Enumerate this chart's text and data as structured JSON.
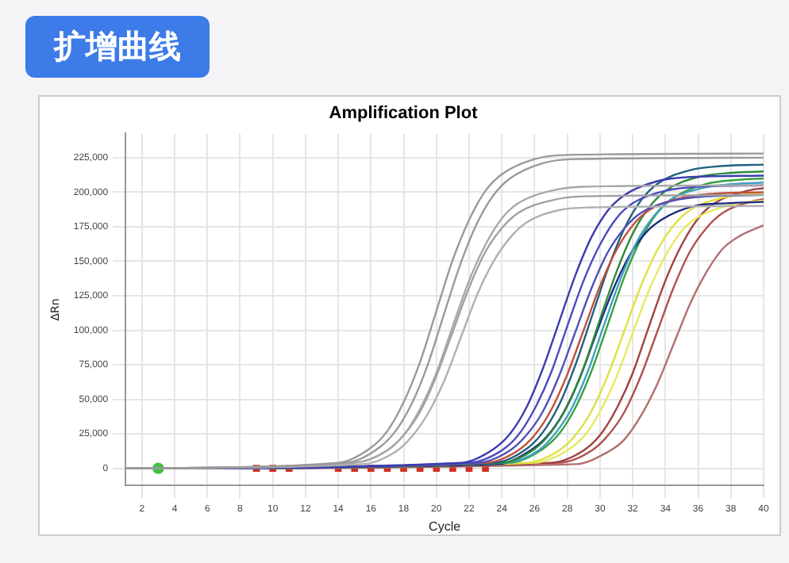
{
  "chart_data": {
    "type": "line",
    "title": "Amplification Plot",
    "xlabel": "Cycle",
    "ylabel": "ΔRn",
    "annotations": [
      "扩增曲线"
    ],
    "xlim": [
      1,
      40
    ],
    "xticks": [
      2,
      4,
      6,
      8,
      10,
      12,
      14,
      16,
      18,
      20,
      22,
      24,
      26,
      28,
      30,
      32,
      34,
      36,
      38,
      40
    ],
    "ylim": [
      -12500,
      242500
    ],
    "yticks": [
      0,
      {
        "value": 25000,
        "label": "25,000"
      },
      {
        "value": 50000,
        "label": "50,000"
      },
      {
        "value": 75000,
        "label": "75,000"
      },
      {
        "value": 100000,
        "label": "100,000"
      },
      {
        "value": 125000,
        "label": "125,000"
      },
      {
        "value": 150000,
        "label": "150,000"
      },
      {
        "value": 175000,
        "label": "175,000"
      },
      {
        "value": 200000,
        "label": "200,000"
      },
      {
        "value": 225000,
        "label": "225,000"
      }
    ],
    "grid": true,
    "legend": false,
    "marker": "none",
    "series": [
      {
        "color": "#9a9a9a",
        "x": [
          1,
          14,
          16,
          17,
          18,
          19,
          20,
          21,
          22,
          23,
          24,
          26,
          28,
          40
        ],
        "values": [
          0,
          4000,
          15000,
          27000,
          48000,
          77000,
          114000,
          151000,
          180000,
          201000,
          213000,
          224000,
          227000,
          228000
        ]
      },
      {
        "color": "#9a9a9a",
        "x": [
          1,
          14.5,
          16.5,
          17.5,
          18.5,
          19.5,
          20.5,
          21.5,
          22.5,
          23.5,
          24.5,
          26.5,
          28.5,
          40
        ],
        "values": [
          0,
          4000,
          15000,
          27000,
          47000,
          76000,
          113000,
          149000,
          178000,
          198000,
          210000,
          221000,
          224000,
          225000
        ]
      },
      {
        "color": "#a8a8a8",
        "x": [
          1,
          15,
          17,
          18,
          19,
          20,
          21,
          22,
          23,
          24,
          25,
          27,
          29,
          40
        ],
        "values": [
          0,
          4000,
          13000,
          24000,
          43000,
          69000,
          103000,
          136000,
          162000,
          181000,
          192000,
          201000,
          204000,
          205000
        ]
      },
      {
        "color": "#a0a0a0",
        "x": [
          1,
          15,
          17,
          18,
          19,
          20,
          21,
          22,
          23,
          24,
          25,
          27,
          29,
          40
        ],
        "values": [
          0,
          4000,
          13000,
          24000,
          41000,
          67000,
          99000,
          131000,
          157000,
          174000,
          185000,
          194000,
          197000,
          198000
        ]
      },
      {
        "color": "#b0b0b0",
        "x": [
          1,
          15.5,
          17.5,
          18.5,
          19.5,
          20.5,
          21.5,
          22.5,
          23.5,
          24.5,
          25.5,
          27.5,
          29.5,
          40
        ],
        "values": [
          0,
          3000,
          12000,
          23000,
          40000,
          64000,
          95000,
          126000,
          150000,
          167000,
          178000,
          187000,
          189000,
          190000
        ]
      },
      {
        "color": "#3b3bb0",
        "x": [
          1,
          21.5,
          23.5,
          24.5,
          25.5,
          26.5,
          27.5,
          28.5,
          29.5,
          30.5,
          31.5,
          33.5,
          35.5,
          40
        ],
        "values": [
          0,
          4000,
          14000,
          25000,
          44000,
          72000,
          106000,
          140000,
          168000,
          187000,
          198000,
          208000,
          211000,
          212000
        ]
      },
      {
        "color": "#4a4ac0",
        "x": [
          1,
          22,
          24,
          25,
          26,
          27,
          28,
          29,
          30,
          31,
          32,
          34,
          36,
          40
        ],
        "values": [
          0,
          4000,
          13000,
          24000,
          43000,
          69000,
          103000,
          136000,
          162000,
          181000,
          192000,
          201000,
          204000,
          205000
        ]
      },
      {
        "color": "#5050b8",
        "x": [
          1,
          22.5,
          24.5,
          25.5,
          26.5,
          27.5,
          28.5,
          29.5,
          30.5,
          31.5,
          32.5,
          34.5,
          36.5,
          40
        ],
        "values": [
          0,
          4000,
          13000,
          24000,
          41000,
          67000,
          99000,
          131000,
          157000,
          174000,
          185000,
          194000,
          197000,
          198000
        ]
      },
      {
        "color": "#c0503a",
        "x": [
          1,
          23,
          25,
          26,
          27,
          28,
          29,
          30,
          31,
          32,
          33,
          35,
          37,
          40
        ],
        "values": [
          0,
          4000,
          13000,
          24000,
          42000,
          68000,
          100000,
          132000,
          158000,
          176000,
          187000,
          196000,
          199000,
          200000
        ]
      },
      {
        "color": "#1f5f7f",
        "x": [
          1,
          23.5,
          25.5,
          26.5,
          27.5,
          28.5,
          29.5,
          30.5,
          31.5,
          32.5,
          33.5,
          35.5,
          37.5,
          40
        ],
        "values": [
          0,
          4000,
          14000,
          26000,
          46000,
          75000,
          110000,
          145000,
          174000,
          194000,
          206000,
          216000,
          219000,
          220000
        ]
      },
      {
        "color": "#2e8b3a",
        "x": [
          1,
          24,
          26,
          27,
          28,
          29,
          30,
          31,
          32,
          33,
          34,
          36,
          38,
          40
        ],
        "values": [
          0,
          4000,
          14000,
          26000,
          45000,
          73000,
          108000,
          142000,
          170000,
          189000,
          201000,
          211000,
          214000,
          215000
        ]
      },
      {
        "color": "#3fa0c0",
        "x": [
          1,
          24.25,
          26.25,
          27.25,
          28.25,
          29.25,
          30.25,
          31.25,
          32.25,
          33.25,
          34.25,
          36.25,
          38.25,
          40
        ],
        "values": [
          0,
          4000,
          13000,
          25000,
          43000,
          70000,
          104000,
          137000,
          164000,
          182000,
          194000,
          203000,
          206000,
          207000
        ]
      },
      {
        "color": "#1a2a80",
        "x": [
          1,
          23.75,
          25.75,
          26.75,
          27.75,
          28.75,
          29.75,
          30.75,
          31.75,
          32.75,
          33.75,
          35.75,
          37.75,
          40
        ],
        "values": [
          0,
          3000,
          13000,
          23000,
          40000,
          65000,
          97000,
          128000,
          153000,
          170000,
          180000,
          190000,
          192000,
          193000
        ]
      },
      {
        "color": "#3aa040",
        "x": [
          1,
          24.5,
          26.5,
          27.5,
          28.5,
          29.5,
          30.5,
          31.5,
          32.5,
          33.5,
          34.5,
          36.5,
          38.5,
          40
        ],
        "values": [
          0,
          4000,
          14000,
          25000,
          44000,
          71000,
          105000,
          139000,
          166000,
          185000,
          196000,
          206000,
          209000,
          210000
        ]
      },
      {
        "color": "#e0e040",
        "x": [
          1,
          25.5,
          27.5,
          28.5,
          29.5,
          30.5,
          31.5,
          32.5,
          33.5,
          34.5,
          35.5,
          37.5,
          39.5,
          40
        ],
        "values": [
          0,
          4000,
          13000,
          24000,
          42000,
          68000,
          100000,
          132000,
          158000,
          176000,
          187000,
          196000,
          199000,
          200000
        ]
      },
      {
        "color": "#e8e860",
        "x": [
          1,
          26,
          28,
          29,
          30,
          31,
          32,
          33,
          34,
          35,
          36,
          38,
          40
        ],
        "values": [
          0,
          4000,
          13000,
          23000,
          41000,
          66000,
          98000,
          129000,
          154000,
          172000,
          182000,
          191000,
          194000
        ]
      },
      {
        "color": "#a04040",
        "x": [
          1,
          27,
          29,
          30,
          31,
          32,
          33,
          34,
          35,
          36,
          37,
          39,
          40
        ],
        "values": [
          0,
          4000,
          13000,
          24000,
          43000,
          69000,
          103000,
          136000,
          162000,
          181000,
          192000,
          201000,
          203000
        ]
      },
      {
        "color": "#b05050",
        "x": [
          1,
          27.5,
          29.5,
          30.5,
          31.5,
          32.5,
          33.5,
          34.5,
          35.5,
          36.5,
          37.5,
          39.5,
          40
        ],
        "values": [
          0,
          4000,
          13000,
          24000,
          41000,
          67000,
          99000,
          131000,
          157000,
          174000,
          185000,
          194000,
          195000
        ]
      },
      {
        "color": "#b07070",
        "x": [
          1,
          28.5,
          30.5,
          31.5,
          32.5,
          33.5,
          34.5,
          35.5,
          36.5,
          37.5,
          38.5,
          40
        ],
        "values": [
          0,
          3000,
          12000,
          21000,
          38000,
          61000,
          90000,
          119000,
          142000,
          159000,
          168000,
          176000
        ]
      },
      {
        "type": "scatter",
        "marker": "square",
        "color": "#d03020",
        "x": [
          9,
          10,
          11,
          14,
          15,
          16,
          17,
          18,
          19,
          20,
          21,
          22,
          23
        ],
        "values": [
          0,
          0,
          0,
          0,
          0,
          0,
          0,
          0,
          0,
          0,
          0,
          0,
          0
        ]
      },
      {
        "type": "scatter",
        "marker": "circle",
        "color": "#40c040",
        "x": [
          3
        ],
        "values": [
          0
        ]
      }
    ]
  }
}
